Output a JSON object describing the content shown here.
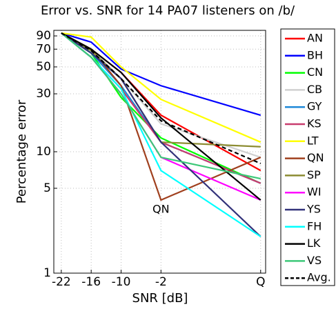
{
  "chart_data": {
    "type": "line",
    "title": "Error vs. SNR for 14 PA07 listeners on /b/",
    "x_label": "SNR [dB]",
    "y_label": "Percentage error",
    "x": [
      -22,
      -16,
      -10,
      -2,
      18
    ],
    "xlim": [
      -23.5,
      19
    ],
    "xticks": [
      -22,
      -16,
      -10,
      -2,
      {
        "value": 18,
        "label": "Q"
      }
    ],
    "ylim": [
      1,
      100
    ],
    "yticks": [
      1,
      5,
      10,
      30,
      50,
      70,
      90
    ],
    "yscale": "log",
    "grid": true,
    "legend": "outside-right",
    "annotations": [
      {
        "text": "QN",
        "x": -2,
        "y": 4
      }
    ],
    "series": [
      {
        "name": "AN",
        "color": "#ff0000",
        "values": [
          95,
          70,
          45,
          20,
          7
        ]
      },
      {
        "name": "BH",
        "color": "#0000ff",
        "values": [
          95,
          80,
          48,
          35,
          20
        ]
      },
      {
        "name": "CN",
        "color": "#00ff00",
        "values": [
          95,
          65,
          28,
          13,
          5.5
        ]
      },
      {
        "name": "CB",
        "color": "#d0d0d0",
        "values": [
          95,
          70,
          40,
          17,
          9
        ]
      },
      {
        "name": "GY",
        "color": "#1e88d8",
        "values": [
          95,
          65,
          35,
          12,
          5.5
        ]
      },
      {
        "name": "KS",
        "color": "#c83c6e",
        "values": [
          95,
          60,
          33,
          12,
          5.5
        ]
      },
      {
        "name": "LT",
        "color": "#ffff00",
        "values": [
          95,
          88,
          50,
          27,
          12
        ]
      },
      {
        "name": "QN",
        "color": "#a0401e",
        "values": [
          95,
          70,
          35,
          4,
          9
        ]
      },
      {
        "name": "SP",
        "color": "#8c8c32",
        "values": [
          95,
          68,
          40,
          12,
          11
        ]
      },
      {
        "name": "WI",
        "color": "#ff00ff",
        "values": [
          95,
          60,
          30,
          9,
          4
        ]
      },
      {
        "name": "YS",
        "color": "#32327a",
        "values": [
          95,
          65,
          40,
          12,
          2
        ]
      },
      {
        "name": "FH",
        "color": "#00ffff",
        "values": [
          95,
          60,
          33,
          7,
          2
        ]
      },
      {
        "name": "LK",
        "color": "#000000",
        "values": [
          95,
          70,
          45,
          19,
          4
        ]
      },
      {
        "name": "VS",
        "color": "#3cc878",
        "values": [
          95,
          60,
          30,
          9,
          6
        ]
      },
      {
        "name": "Avg.",
        "color": "#000000",
        "linestyle": "dashed",
        "values": [
          95,
          68,
          40,
          18,
          8
        ]
      }
    ]
  }
}
